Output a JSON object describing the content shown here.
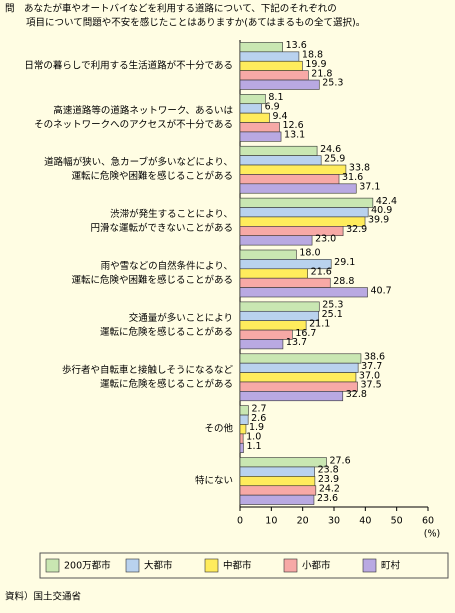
{
  "chart_data": {
    "type": "hbar",
    "title": [
      "問　あなたが車やオートバイなどを利用する道路について、下記のそれぞれの",
      "項目について問題や不安を感じたことはありますか(あてはまるもの全て選択)。"
    ],
    "categories": [
      [
        "日常の暮らしで利用する生活道路が不十分である"
      ],
      [
        "高速道路等の道路ネットワーク、あるいは",
        "そのネットワークへのアクセスが不十分である"
      ],
      [
        "道路幅が狭い、急カーブが多いなどにより、",
        "運転に危険や困難を感じることがある"
      ],
      [
        "渋滞が発生することにより、",
        "円滑な運転ができないことがある"
      ],
      [
        "雨や雪などの自然条件により、",
        "運転に危険や困難を感じることがある"
      ],
      [
        "交通量が多いことにより",
        "運転に危険を感じることがある"
      ],
      [
        "歩行者や自転車と接触しそうになるなど",
        "運転に危険を感じることがある"
      ],
      [
        "その他"
      ],
      [
        "特にない"
      ]
    ],
    "series": [
      {
        "name": "200万都市",
        "color": "#c9e7b2",
        "values": [
          13.6,
          8.1,
          24.6,
          42.4,
          18.0,
          25.3,
          38.6,
          2.7,
          27.6
        ],
        "value_labels": [
          "13.6",
          "8.1",
          "24.6",
          "42.4",
          "18.0",
          "25.3",
          "38.6",
          "2.7",
          "27.6"
        ]
      },
      {
        "name": "大都市",
        "color": "#b9d2ee",
        "values": [
          18.8,
          6.9,
          25.9,
          40.9,
          29.1,
          25.1,
          37.7,
          2.6,
          23.8
        ],
        "value_labels": [
          "18.8",
          "6.9",
          "25.9",
          "40.9",
          "29.1",
          "25.1",
          "37.7",
          "2.6",
          "23.8"
        ]
      },
      {
        "name": "中都市",
        "color": "#ffec5c",
        "values": [
          19.9,
          9.4,
          33.8,
          39.9,
          21.6,
          21.1,
          37.0,
          1.9,
          23.9
        ],
        "value_labels": [
          "19.9",
          "9.4",
          "33.8",
          "39.9",
          "21.6",
          "21.1",
          "37.0",
          "1.9",
          "23.9"
        ]
      },
      {
        "name": "小都市",
        "color": "#f7a9a6",
        "values": [
          21.8,
          12.6,
          31.6,
          32.9,
          28.8,
          16.7,
          37.5,
          1.0,
          24.2
        ],
        "value_labels": [
          "21.8",
          "12.6",
          "31.6",
          "32.9",
          "28.8",
          "16.7",
          "37.5",
          "1.0",
          "24.2"
        ]
      },
      {
        "name": "町村",
        "color": "#b9a9e2",
        "values": [
          25.3,
          13.1,
          37.1,
          23.0,
          40.7,
          13.7,
          32.8,
          1.1,
          23.6
        ],
        "value_labels": [
          "25.3",
          "13.1",
          "37.1",
          "23.0",
          "40.7",
          "13.7",
          "32.8",
          "1.1",
          "23.6"
        ]
      }
    ],
    "xlim": [
      0,
      60
    ],
    "xticks": [
      0,
      10,
      20,
      30,
      40,
      50,
      60
    ],
    "xunit": "(%)",
    "source": "資料）国土交通省"
  }
}
